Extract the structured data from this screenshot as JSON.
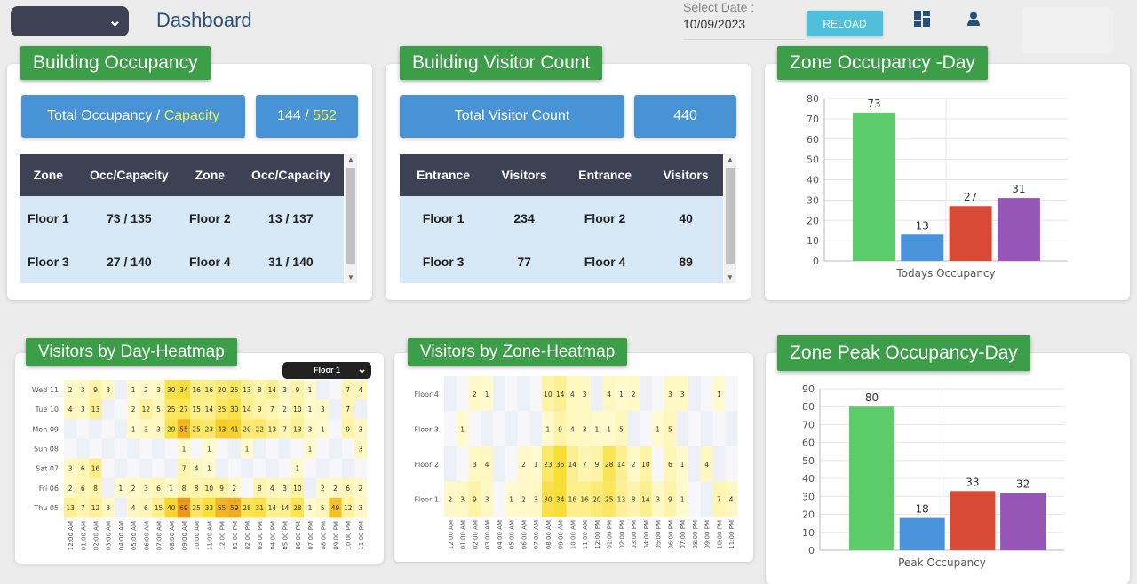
{
  "header": {
    "title": "Dashboard",
    "date_label": "Select Date :",
    "date_value": "10/09/2023",
    "reload_label": "RELOAD",
    "icons": [
      "chevron-down-icon",
      "dashboard-grid-icon",
      "user-icon"
    ]
  },
  "building_occupancy": {
    "title": "Building Occupancy",
    "summary_label_a": "Total Occupancy / ",
    "summary_label_b": "Capacity",
    "occ": "144",
    "sep": " / ",
    "cap": "552",
    "columns": [
      "Zone",
      "Occ/Capacity",
      "Zone",
      "Occ/Capacity"
    ],
    "rows": [
      [
        "Floor 1",
        "73 / 135",
        "Floor 2",
        "13 / 137"
      ],
      [
        "Floor 3",
        "27 / 140",
        "Floor 4",
        "31 / 140"
      ]
    ]
  },
  "visitor_count": {
    "title": "Building Visitor Count",
    "summary_label": "Total Visitor Count",
    "value": "440",
    "columns": [
      "Entrance",
      "Visitors",
      "Entrance",
      "Visitors"
    ],
    "rows": [
      [
        "Floor 1",
        "234",
        "Floor 2",
        "40"
      ],
      [
        "Floor 3",
        "77",
        "Floor 4",
        "89"
      ]
    ]
  },
  "zone_occupancy_title": "Zone Occupancy -Day",
  "day_heatmap_title": "Visitors by Day-Heatmap",
  "day_heatmap_filter": "Floor 1",
  "zone_heatmap_title": "Visitors by Zone-Heatmap",
  "zone_peak_title": "Zone Peak Occupancy-Day",
  "colors": {
    "green": "#5ccc6a",
    "blue": "#4a94dc",
    "red": "#d94a36",
    "purple": "#9556b8",
    "title_green": "#3c9e49",
    "header_dark": "#3d4154"
  },
  "chart_data": [
    {
      "type": "bar",
      "xlabel": "Todays Occupancy",
      "ylim": [
        0,
        80
      ],
      "yticks": [
        0,
        10,
        20,
        30,
        40,
        50,
        60,
        70,
        80
      ],
      "values": [
        73,
        13,
        27,
        31
      ],
      "colors": [
        "#5ccc6a",
        "#4a94dc",
        "#d94a36",
        "#9556b8"
      ]
    },
    {
      "type": "bar",
      "xlabel": "Peak Occupancy",
      "ylim": [
        0,
        90
      ],
      "yticks": [
        0,
        10,
        20,
        30,
        40,
        50,
        60,
        70,
        80,
        90
      ],
      "values": [
        80,
        18,
        33,
        32
      ],
      "colors": [
        "#5ccc6a",
        "#4a94dc",
        "#d94a36",
        "#9556b8"
      ]
    },
    {
      "type": "heatmap",
      "x": [
        "12:00 AM",
        "01:00 AM",
        "02:00 AM",
        "03:00 AM",
        "04:00 AM",
        "05:00 AM",
        "06:00 AM",
        "07:00 AM",
        "08:00 AM",
        "09:00 AM",
        "10:00 AM",
        "11:00 AM",
        "12:00 PM",
        "01:00 PM",
        "02:00 PM",
        "03:00 PM",
        "04:00 PM",
        "05:00 PM",
        "06:00 PM",
        "07:00 PM",
        "08:00 PM",
        "09:00 PM",
        "10:00 PM",
        "11:00 PM"
      ],
      "y": [
        "Wed 11",
        "Tue 10",
        "Mon 09",
        "Sun 08",
        "Sat 07",
        "Fri 06",
        "Thu 05"
      ],
      "values": [
        [
          2,
          3,
          9,
          3,
          null,
          1,
          2,
          3,
          30,
          34,
          16,
          16,
          20,
          25,
          13,
          8,
          14,
          3,
          9,
          1,
          null,
          null,
          7,
          4
        ],
        [
          4,
          3,
          13,
          null,
          null,
          2,
          12,
          5,
          25,
          27,
          15,
          14,
          25,
          30,
          14,
          9,
          7,
          2,
          10,
          1,
          3,
          null,
          7,
          null
        ],
        [
          null,
          null,
          null,
          null,
          null,
          1,
          3,
          3,
          29,
          55,
          25,
          23,
          43,
          41,
          20,
          22,
          13,
          7,
          13,
          3,
          1,
          null,
          9,
          3
        ],
        [
          null,
          null,
          null,
          null,
          null,
          null,
          null,
          null,
          null,
          1,
          null,
          1,
          null,
          null,
          1,
          null,
          null,
          null,
          null,
          1,
          null,
          null,
          null,
          3
        ],
        [
          3,
          6,
          16,
          null,
          null,
          null,
          null,
          null,
          null,
          7,
          4,
          1,
          null,
          null,
          null,
          null,
          null,
          null,
          1,
          null,
          null,
          null,
          null,
          null
        ],
        [
          2,
          6,
          8,
          null,
          1,
          2,
          3,
          6,
          1,
          8,
          8,
          10,
          9,
          2,
          null,
          8,
          4,
          3,
          10,
          null,
          2,
          2,
          6,
          2
        ],
        [
          13,
          7,
          12,
          3,
          null,
          4,
          6,
          15,
          40,
          69,
          25,
          33,
          55,
          59,
          28,
          31,
          14,
          14,
          28,
          1,
          5,
          49,
          12,
          3
        ]
      ]
    },
    {
      "type": "heatmap",
      "x": [
        "12:00 AM",
        "01:00 AM",
        "02:00 AM",
        "03:00 AM",
        "04:00 AM",
        "05:00 AM",
        "06:00 AM",
        "07:00 AM",
        "08:00 AM",
        "09:00 AM",
        "10:00 AM",
        "11:00 AM",
        "12:00 PM",
        "01:00 PM",
        "02:00 PM",
        "03:00 PM",
        "04:00 PM",
        "05:00 PM",
        "06:00 PM",
        "07:00 PM",
        "08:00 PM",
        "09:00 PM",
        "10:00 PM",
        "11:00 PM"
      ],
      "y": [
        "Floor 4",
        "Floor 3",
        "Floor 2",
        "Floor 1"
      ],
      "values": [
        [
          null,
          null,
          2,
          1,
          null,
          null,
          null,
          null,
          10,
          14,
          4,
          3,
          null,
          4,
          1,
          2,
          null,
          null,
          3,
          3,
          null,
          null,
          1,
          null
        ],
        [
          null,
          1,
          null,
          null,
          null,
          null,
          null,
          null,
          1,
          9,
          4,
          3,
          1,
          1,
          5,
          null,
          null,
          1,
          5,
          null,
          null,
          null,
          null,
          null
        ],
        [
          null,
          null,
          3,
          4,
          null,
          null,
          2,
          1,
          23,
          35,
          14,
          7,
          9,
          28,
          14,
          2,
          10,
          null,
          6,
          1,
          null,
          4,
          null,
          null
        ],
        [
          2,
          3,
          9,
          3,
          null,
          1,
          2,
          3,
          30,
          34,
          16,
          16,
          20,
          25,
          13,
          8,
          14,
          3,
          9,
          1,
          null,
          null,
          7,
          4
        ]
      ]
    }
  ]
}
